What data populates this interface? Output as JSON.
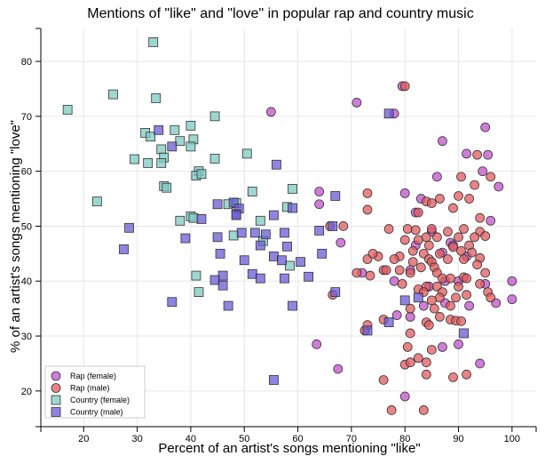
{
  "chart_data": {
    "type": "scatter",
    "title": "Mentions of \"like\" and \"love\" in popular rap and country music",
    "xlabel": "Percent of an artist's songs mentioning \"like\"",
    "ylabel": "% of an artist's songs mentioning \"love\"",
    "xlim": [
      12,
      104.5
    ],
    "ylim": [
      13.5,
      86
    ],
    "xticks": [
      20,
      30,
      40,
      50,
      60,
      70,
      80,
      90,
      100
    ],
    "yticks": [
      20,
      30,
      40,
      50,
      60,
      70,
      80
    ],
    "grid": true,
    "legend_position": "bottom-left",
    "series": [
      {
        "name": "Rap (female)",
        "marker": "circle",
        "color": "#c051c9",
        "points": [
          [
            55,
            70.8
          ],
          [
            71,
            72.5
          ],
          [
            78,
            70.5
          ],
          [
            79.5,
            75.5
          ],
          [
            87,
            65.5
          ],
          [
            95,
            68
          ],
          [
            97.5,
            57.2
          ],
          [
            91.5,
            63.2
          ],
          [
            94.5,
            60
          ],
          [
            95.5,
            63
          ],
          [
            86,
            59
          ],
          [
            80,
            56
          ],
          [
            83,
            55
          ],
          [
            64,
            56.3
          ],
          [
            64,
            54
          ],
          [
            82,
            52.5
          ],
          [
            82,
            46.5
          ],
          [
            88.5,
            47
          ],
          [
            96,
            51
          ],
          [
            90,
            40
          ],
          [
            87.5,
            40
          ],
          [
            84.5,
            39
          ],
          [
            97,
            36
          ],
          [
            100,
            40
          ],
          [
            100,
            36.7
          ],
          [
            95,
            39.5
          ],
          [
            92,
            35.5
          ],
          [
            87.5,
            36
          ],
          [
            83.5,
            35.5
          ],
          [
            81,
            33.5
          ],
          [
            78.5,
            33.8
          ],
          [
            87,
            28
          ],
          [
            90,
            28.5
          ],
          [
            80,
            19
          ],
          [
            94,
            25
          ],
          [
            67.5,
            24
          ],
          [
            63.5,
            28.5
          ],
          [
            68,
            47
          ],
          [
            89,
            46.5
          ],
          [
            72,
            41.5
          ],
          [
            81,
            42
          ],
          [
            87,
            45.2
          ],
          [
            91.5,
            44.5
          ],
          [
            85,
            49
          ],
          [
            78,
            40
          ]
        ]
      },
      {
        "name": "Rap (male)",
        "marker": "circle",
        "color": "#e05a5e",
        "points": [
          [
            80,
            75.5
          ],
          [
            93.5,
            63
          ],
          [
            93,
            57.5
          ],
          [
            96,
            59
          ],
          [
            90.5,
            59
          ],
          [
            90,
            55.5
          ],
          [
            92,
            55
          ],
          [
            86.5,
            55
          ],
          [
            84,
            54.5
          ],
          [
            85,
            54.2
          ],
          [
            89,
            53.3
          ],
          [
            82.5,
            52.5
          ],
          [
            94,
            51.5
          ],
          [
            73,
            56
          ],
          [
            73,
            53
          ],
          [
            68.5,
            50
          ],
          [
            66,
            50
          ],
          [
            80.5,
            49.5
          ],
          [
            82,
            49.3
          ],
          [
            85,
            49.5
          ],
          [
            88,
            49
          ],
          [
            91,
            49.5
          ],
          [
            94,
            49
          ],
          [
            77,
            49.5
          ],
          [
            80,
            47.5
          ],
          [
            82.5,
            47.5
          ],
          [
            84,
            48
          ],
          [
            86,
            48
          ],
          [
            90,
            48
          ],
          [
            93,
            48
          ],
          [
            95,
            48.2
          ],
          [
            84.5,
            46.5
          ],
          [
            89,
            46.2
          ],
          [
            92,
            46.5
          ],
          [
            81.5,
            45.5
          ],
          [
            83.5,
            45
          ],
          [
            86.5,
            45
          ],
          [
            90.5,
            45.5
          ],
          [
            92.5,
            45.2
          ],
          [
            79,
            44.5
          ],
          [
            84.5,
            44
          ],
          [
            88,
            44
          ],
          [
            91,
            44
          ],
          [
            94,
            44.2
          ],
          [
            73,
            44
          ],
          [
            75,
            44.5
          ],
          [
            78,
            44
          ],
          [
            81.5,
            43.5
          ],
          [
            85,
            43.5
          ],
          [
            83,
            42.5
          ],
          [
            85.5,
            42.5
          ],
          [
            93.5,
            43
          ],
          [
            76,
            42
          ],
          [
            76.5,
            42
          ],
          [
            79,
            42
          ],
          [
            81,
            41.5
          ],
          [
            86,
            41.5
          ],
          [
            95,
            41.5
          ],
          [
            71,
            41.5
          ],
          [
            73.5,
            41
          ],
          [
            87,
            40.5
          ],
          [
            88.5,
            40.5
          ],
          [
            91,
            40.7
          ],
          [
            91.5,
            40.5
          ],
          [
            79.5,
            39.5
          ],
          [
            84,
            39
          ],
          [
            86,
            39
          ],
          [
            90,
            39
          ],
          [
            94,
            39.5
          ],
          [
            82.5,
            38.5
          ],
          [
            83.5,
            38
          ],
          [
            87,
            38
          ],
          [
            95.5,
            38
          ],
          [
            86.5,
            37
          ],
          [
            89.5,
            37
          ],
          [
            91.5,
            37.5
          ],
          [
            96,
            37
          ],
          [
            85,
            36.5
          ],
          [
            66.5,
            37.5
          ],
          [
            81,
            35
          ],
          [
            85.5,
            35
          ],
          [
            88.5,
            35.5
          ],
          [
            86.5,
            33.5
          ],
          [
            88.5,
            33
          ],
          [
            89.5,
            32.8
          ],
          [
            90.5,
            32.7
          ],
          [
            73,
            32
          ],
          [
            76,
            33
          ],
          [
            84,
            32.5
          ],
          [
            84.5,
            32
          ],
          [
            72.5,
            31
          ],
          [
            81,
            30.5
          ],
          [
            80.5,
            28
          ],
          [
            85,
            27.5
          ],
          [
            82.5,
            26
          ],
          [
            84,
            25.2
          ],
          [
            80,
            24.8
          ],
          [
            81,
            25.2
          ],
          [
            76,
            22
          ],
          [
            77.5,
            16.5
          ],
          [
            83.5,
            16.5
          ],
          [
            84,
            23
          ],
          [
            89,
            22.5
          ],
          [
            91.5,
            23
          ],
          [
            74,
            45
          ]
        ]
      },
      {
        "name": "Country (female)",
        "marker": "square",
        "color": "#7ec8c0",
        "points": [
          [
            33,
            83.5
          ],
          [
            25.5,
            74
          ],
          [
            17,
            71.2
          ],
          [
            33.5,
            73.3
          ],
          [
            44.5,
            70
          ],
          [
            40,
            68.3
          ],
          [
            37,
            67.5
          ],
          [
            31.5,
            67
          ],
          [
            32.5,
            66.3
          ],
          [
            38,
            65.5
          ],
          [
            40.5,
            65.8
          ],
          [
            40,
            64.5
          ],
          [
            34.5,
            64
          ],
          [
            35,
            62.5
          ],
          [
            34.5,
            61.5
          ],
          [
            44.5,
            62.3
          ],
          [
            29.5,
            62.2
          ],
          [
            32,
            61.5
          ],
          [
            41.5,
            60
          ],
          [
            41,
            59.2
          ],
          [
            50.5,
            63.2
          ],
          [
            42,
            59.5
          ],
          [
            35,
            57.3
          ],
          [
            35.5,
            57
          ],
          [
            59,
            56.8
          ],
          [
            51.5,
            56.3
          ],
          [
            47,
            54
          ],
          [
            58,
            53.5
          ],
          [
            22.5,
            54.5
          ],
          [
            40,
            51.8
          ],
          [
            40.5,
            51.5
          ],
          [
            38,
            51
          ],
          [
            53,
            51
          ],
          [
            48,
            48.3
          ],
          [
            53.5,
            47.3
          ],
          [
            41,
            41
          ],
          [
            58.5,
            42.8
          ],
          [
            41.5,
            38
          ],
          [
            48.5,
            54.2
          ]
        ]
      },
      {
        "name": "Country (male)",
        "marker": "square",
        "color": "#6a5bd6",
        "points": [
          [
            77,
            70.5
          ],
          [
            34,
            67.5
          ],
          [
            36.5,
            64.5
          ],
          [
            56,
            61.2
          ],
          [
            45,
            54
          ],
          [
            48,
            54.3
          ],
          [
            49,
            53.2
          ],
          [
            59,
            53.3
          ],
          [
            48.5,
            52.2
          ],
          [
            55.5,
            52
          ],
          [
            42,
            51.3
          ],
          [
            67,
            55.5
          ],
          [
            28.5,
            49.7
          ],
          [
            45,
            48
          ],
          [
            49.5,
            48.8
          ],
          [
            52,
            48.8
          ],
          [
            54,
            48.5
          ],
          [
            57.5,
            48.8
          ],
          [
            64,
            49.2
          ],
          [
            66.5,
            50
          ],
          [
            39,
            47.8
          ],
          [
            53,
            46.5
          ],
          [
            58,
            46.3
          ],
          [
            27.5,
            45.8
          ],
          [
            45.5,
            45
          ],
          [
            55.5,
            44.5
          ],
          [
            57,
            43.8
          ],
          [
            60.5,
            43.5
          ],
          [
            50,
            43.8
          ],
          [
            64.5,
            45
          ],
          [
            46,
            41
          ],
          [
            51.5,
            41.3
          ],
          [
            53,
            40.5
          ],
          [
            57.5,
            40.5
          ],
          [
            62,
            40.8
          ],
          [
            67,
            38
          ],
          [
            44.5,
            40.2
          ],
          [
            46,
            39.2
          ],
          [
            47,
            35.5
          ],
          [
            36.5,
            36.2
          ],
          [
            59,
            35.5
          ],
          [
            73,
            31
          ],
          [
            82.5,
            37
          ],
          [
            80,
            36.5
          ],
          [
            91,
            30.5
          ],
          [
            77,
            32.5
          ],
          [
            55.5,
            22
          ],
          [
            48.5,
            52
          ]
        ]
      }
    ]
  }
}
